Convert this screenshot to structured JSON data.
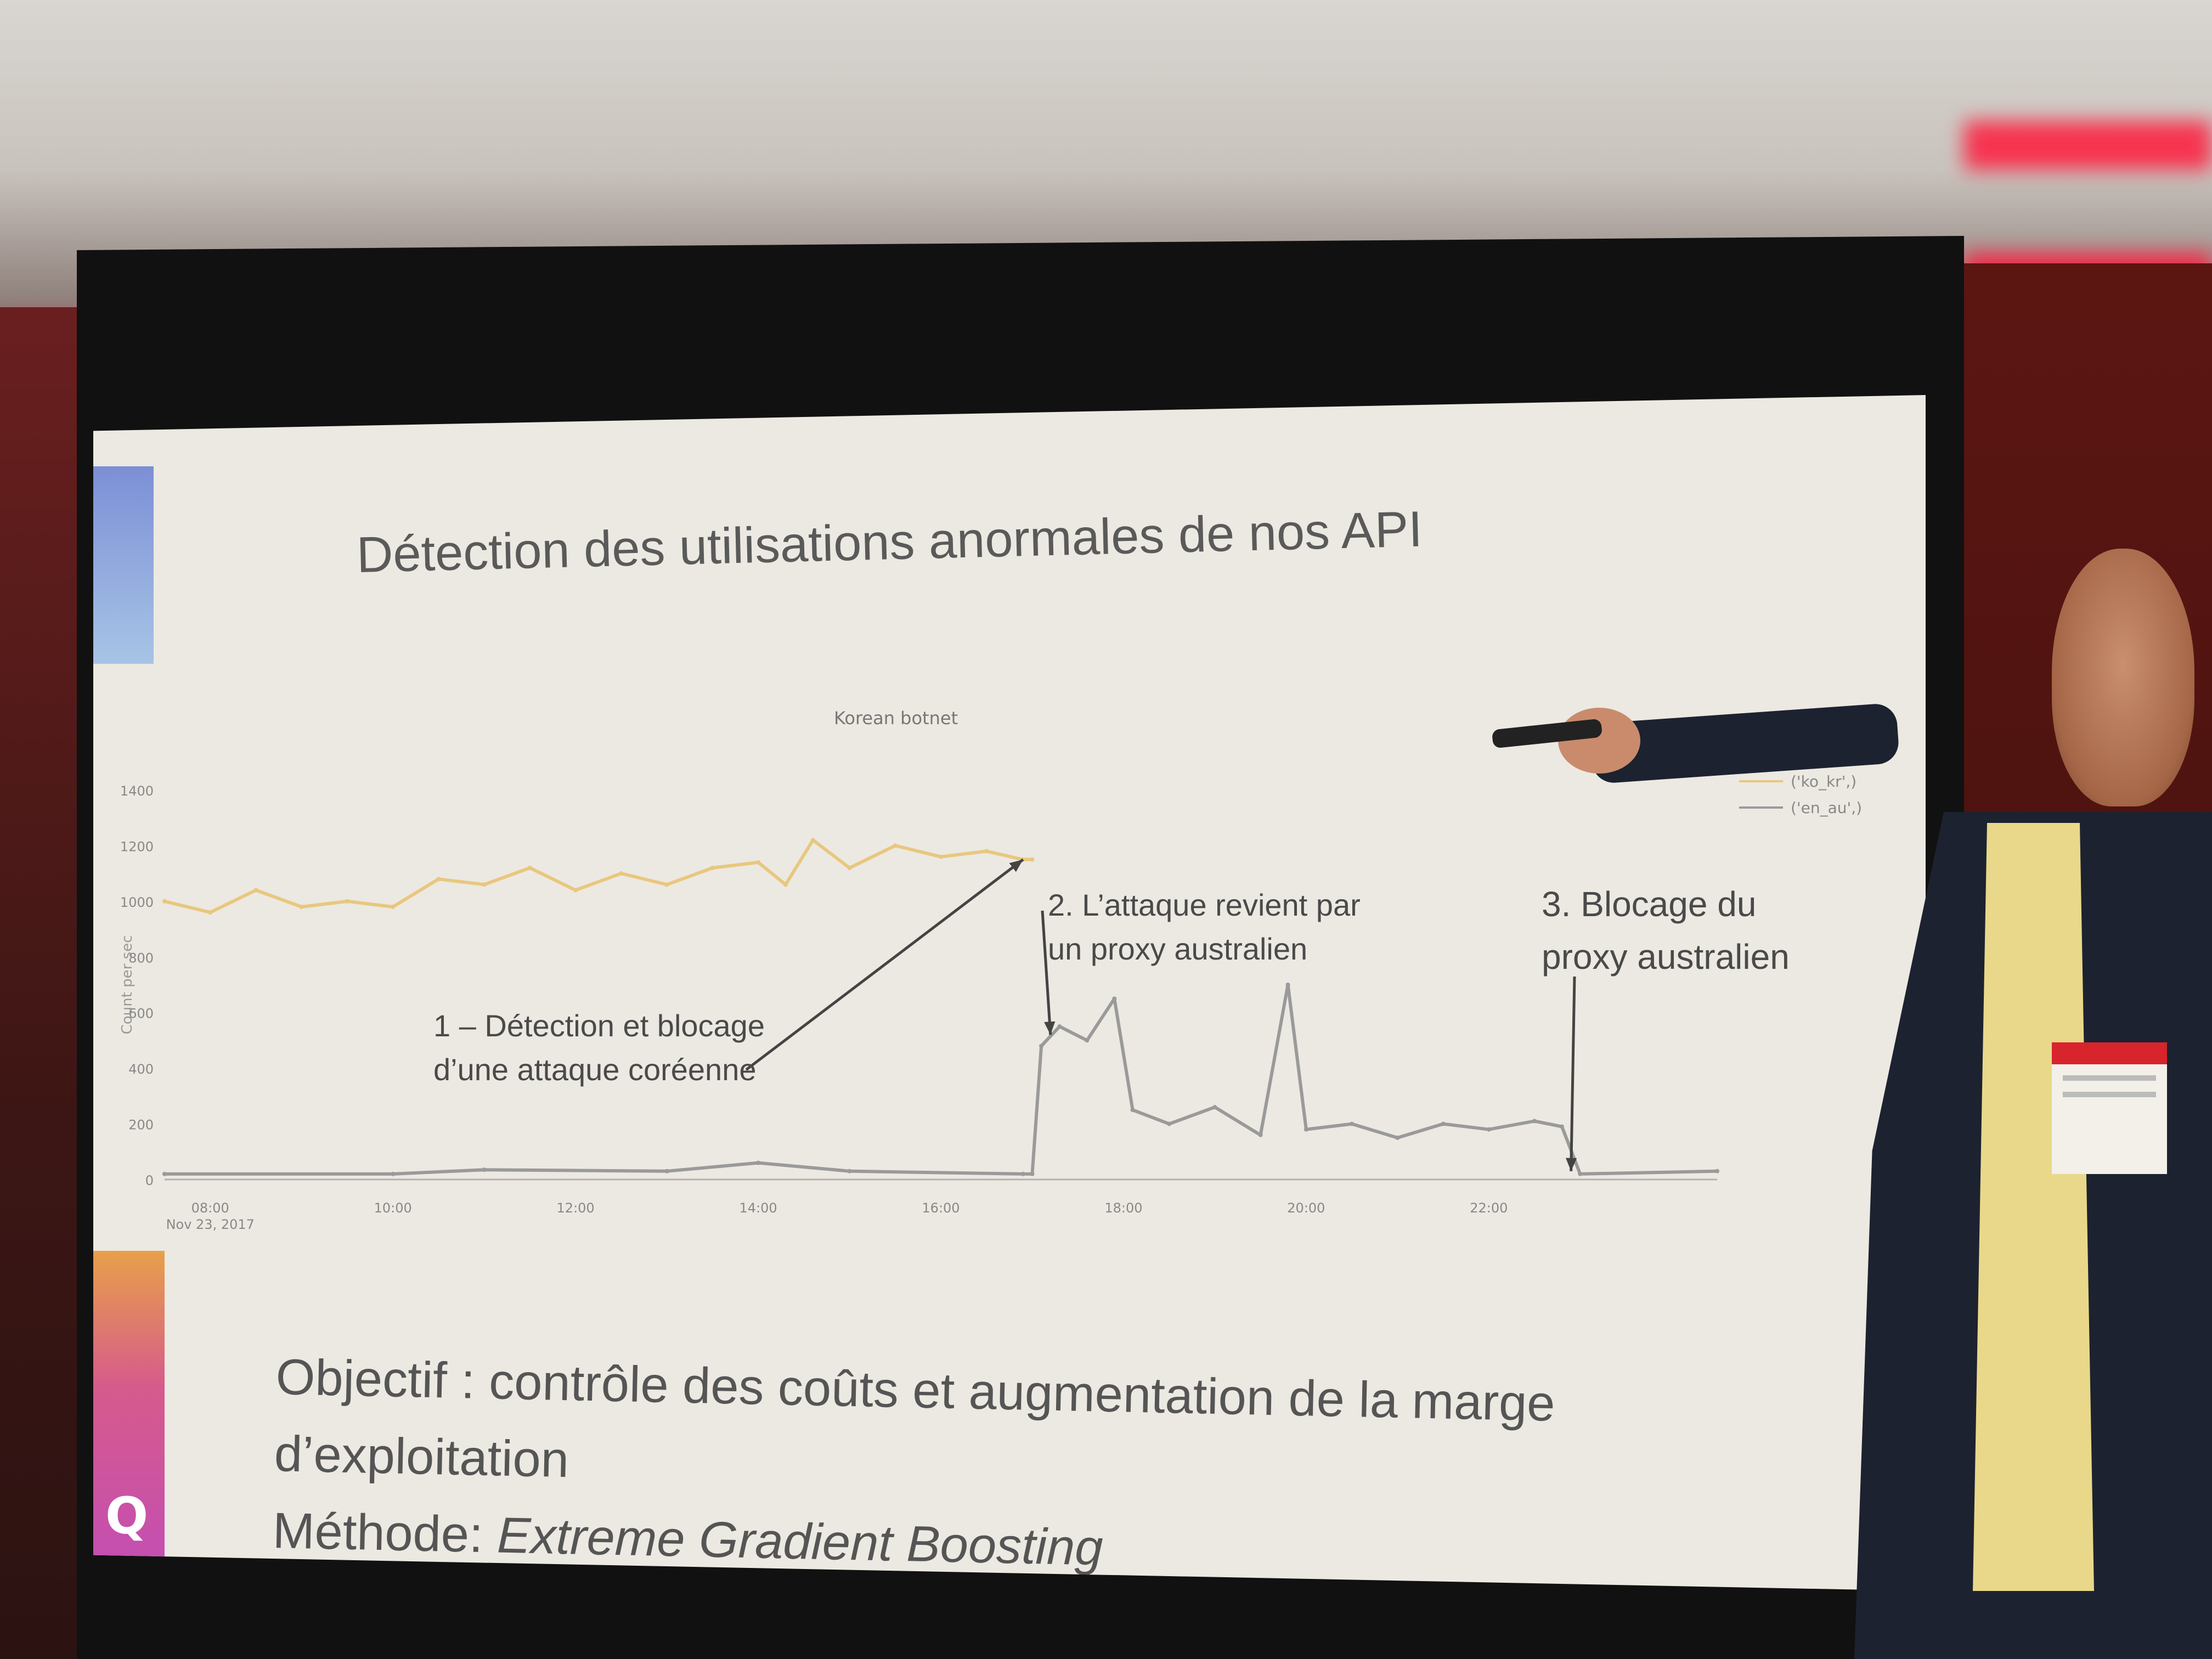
{
  "colors": {
    "slide_background": "#ece9e2",
    "series_attack": "#e8c77e",
    "series_baseline": "#9a9a9a",
    "annotation_arrow": "#444444",
    "ambient_red": "#ff1a3c"
  },
  "slide": {
    "title": "Détection des utilisations anormales de nos API",
    "logo_glyph": "Q",
    "objective": "Objectif : contrôle des coûts et augmentation de la marge",
    "objective_cont": "d’exploitation",
    "method_label": "Méthode: ",
    "method_value": "Extreme Gradient Boosting"
  },
  "annotations": {
    "a1_line1": "1 – Détection et blocage",
    "a1_line2": "d’une attaque coréenne",
    "a2_line1": "2. L’attaque revient par",
    "a2_line2": "un proxy australien",
    "a3_line1": "3. Blocage du",
    "a3_line2": "proxy australien"
  },
  "chart_data": {
    "type": "line",
    "title": "Korean botnet",
    "ylabel": "Count per sec",
    "ylim": [
      0,
      1400
    ],
    "yticks": [
      "0",
      "200",
      "400",
      "600",
      "800",
      "1000",
      "1200",
      "1400"
    ],
    "x_tick_labels": [
      "08:00\nNov 23, 2017",
      "10:00",
      "12:00",
      "14:00",
      "16:00",
      "18:00",
      "20:00",
      "22:00"
    ],
    "x_hours_range": [
      7.5,
      24.5
    ],
    "series": [
      {
        "name": "('ko_kr',)",
        "color": "#e8c77e",
        "points": [
          [
            7.5,
            1000
          ],
          [
            8.0,
            960
          ],
          [
            8.5,
            1040
          ],
          [
            9.0,
            980
          ],
          [
            9.5,
            1000
          ],
          [
            10.0,
            980
          ],
          [
            10.5,
            1080
          ],
          [
            11.0,
            1060
          ],
          [
            11.5,
            1120
          ],
          [
            12.0,
            1040
          ],
          [
            12.5,
            1100
          ],
          [
            13.0,
            1060
          ],
          [
            13.5,
            1120
          ],
          [
            14.0,
            1140
          ],
          [
            14.3,
            1060
          ],
          [
            14.6,
            1220
          ],
          [
            15.0,
            1120
          ],
          [
            15.5,
            1200
          ],
          [
            16.0,
            1160
          ],
          [
            16.5,
            1180
          ],
          [
            16.9,
            1150
          ],
          [
            17.0,
            1150
          ]
        ]
      },
      {
        "name": "('en_au',)",
        "color": "#9a9a9a",
        "points": [
          [
            7.5,
            20
          ],
          [
            10.0,
            20
          ],
          [
            11.0,
            35
          ],
          [
            13.0,
            30
          ],
          [
            14.0,
            60
          ],
          [
            15.0,
            30
          ],
          [
            16.9,
            20
          ],
          [
            17.0,
            20
          ],
          [
            17.1,
            480
          ],
          [
            17.3,
            550
          ],
          [
            17.6,
            500
          ],
          [
            17.9,
            650
          ],
          [
            18.1,
            250
          ],
          [
            18.5,
            200
          ],
          [
            19.0,
            260
          ],
          [
            19.5,
            160
          ],
          [
            19.8,
            700
          ],
          [
            20.0,
            180
          ],
          [
            20.5,
            200
          ],
          [
            21.0,
            150
          ],
          [
            21.5,
            200
          ],
          [
            22.0,
            180
          ],
          [
            22.5,
            210
          ],
          [
            22.8,
            190
          ],
          [
            23.0,
            20
          ],
          [
            24.5,
            30
          ]
        ]
      }
    ]
  }
}
